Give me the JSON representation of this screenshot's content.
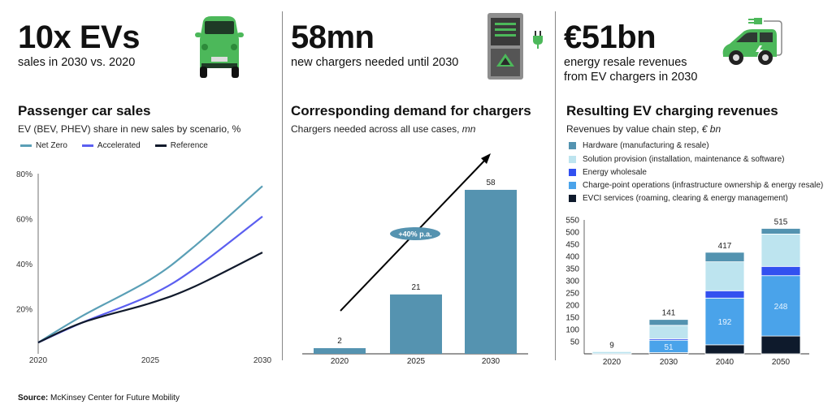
{
  "header": {
    "evs": {
      "headline": "10x EVs",
      "caption": "sales in 2030 vs. 2020"
    },
    "chargers": {
      "headline": "58mn",
      "caption": "new chargers needed until 2030"
    },
    "revenues": {
      "headline": "€51bn",
      "caption_line1": "energy resale revenues",
      "caption_line2": "from EV chargers in 2030"
    }
  },
  "icons": [
    "car-front-icon",
    "charging-station-icon",
    "plug-icon",
    "ev-car-plug-icon"
  ],
  "chart_data": [
    {
      "type": "line",
      "title": "Passenger car sales",
      "subtitle": "EV (BEV, PHEV) share in new sales by scenario, %",
      "x": [
        2020,
        2022,
        2025,
        2027,
        2030
      ],
      "x_ticks": [
        "2020",
        "2025",
        "2030"
      ],
      "y_ticks": [
        "80%",
        "60%",
        "40%",
        "20%"
      ],
      "ylim": [
        0,
        80
      ],
      "legend_position": "top-left",
      "series": [
        {
          "name": "Net Zero",
          "color": "#5a9fb6",
          "values": [
            5,
            17,
            33,
            48,
            74.5
          ]
        },
        {
          "name": "Accelerated",
          "color": "#5b5ff0",
          "values": [
            5,
            14,
            26,
            38,
            61
          ]
        },
        {
          "name": "Reference",
          "color": "#111a2c",
          "values": [
            5,
            14,
            22.5,
            30,
            45
          ]
        }
      ]
    },
    {
      "type": "bar",
      "title": "Corresponding demand for chargers",
      "subtitle_prefix": "Chargers needed across all use cases, ",
      "subtitle_unit": "mn",
      "categories": [
        "2020",
        "2025",
        "2030"
      ],
      "values": [
        2,
        21,
        58
      ],
      "labels": [
        "2",
        "21",
        "58"
      ],
      "annotation": "+40% p.a.",
      "color": "#5593b0",
      "ylim": [
        0,
        62
      ]
    },
    {
      "type": "bar",
      "stacked": true,
      "title": "Resulting EV charging revenues",
      "subtitle_prefix": "Revenues by value chain step, ",
      "subtitle_unit": "€ bn",
      "categories": [
        "2020",
        "2030",
        "2040",
        "2050"
      ],
      "totals": [
        "9",
        "141",
        "417",
        "515"
      ],
      "y_ticks": [
        "550",
        "500",
        "450",
        "400",
        "350",
        "300",
        "250",
        "200",
        "150",
        "100",
        "50"
      ],
      "ylim": [
        0,
        550
      ],
      "series": [
        {
          "name": "EVCI services (roaming, clearing & energy management)",
          "color": "#0e1a2c",
          "values": [
            0,
            5,
            37,
            73
          ]
        },
        {
          "name": "Charge-point operations (infrastructure ownership & energy resale)",
          "color": "#4aa3ea",
          "values": [
            0,
            51,
            192,
            248
          ],
          "labels": [
            "",
            "51",
            "192",
            "248"
          ]
        },
        {
          "name": "Energy wholesale",
          "color": "#3250f0",
          "values": [
            0,
            6,
            30,
            38
          ]
        },
        {
          "name": "Solution provision (installation, maintenance & software)",
          "color": "#bde4ef",
          "values": [
            9,
            55,
            119,
            133
          ]
        },
        {
          "name": "Hardware (manufacturing & resale)",
          "color": "#5393b0",
          "values": [
            0,
            24,
            39,
            23
          ]
        }
      ]
    }
  ],
  "source": {
    "label": "Source:",
    "text": " McKinsey Center for Future Mobility"
  }
}
